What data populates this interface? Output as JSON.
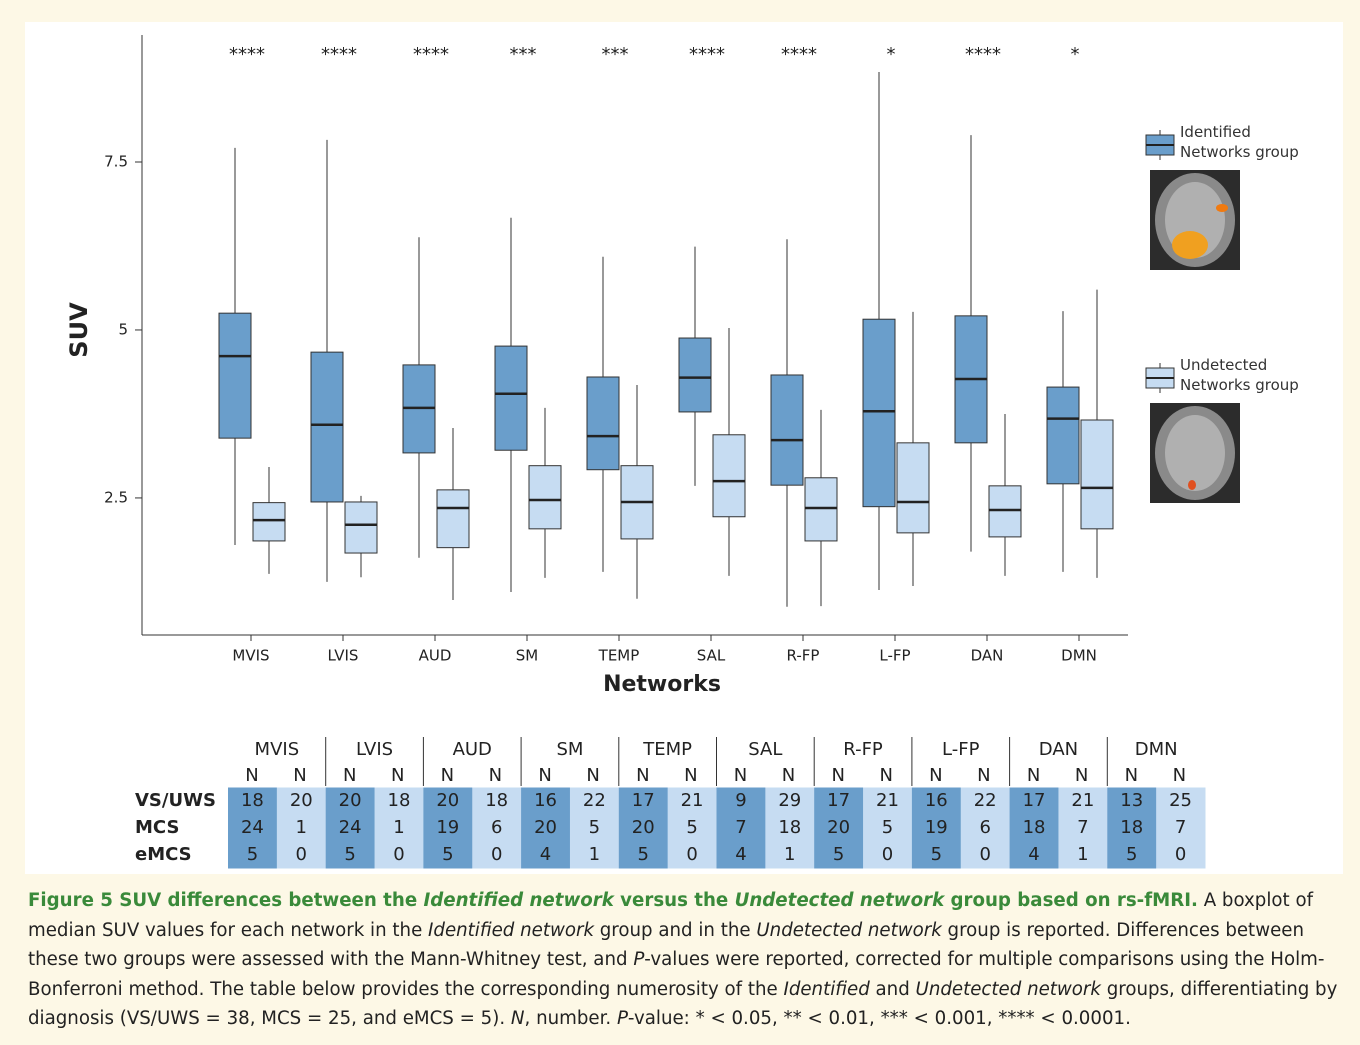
{
  "chart_data": {
    "type": "boxplot",
    "x_label": "Networks",
    "y_label": "SUV",
    "categories": [
      "MVIS",
      "LVIS",
      "AUD",
      "SM",
      "TEMP",
      "SAL",
      "R-FP",
      "L-FP",
      "DAN",
      "DMN"
    ],
    "significance": [
      "****",
      "****",
      "****",
      "***",
      "***",
      "****",
      "****",
      "*",
      "****",
      "*"
    ],
    "ylim": [
      0.46,
      9.39
    ],
    "yticks": [
      2.5,
      5,
      7.5
    ],
    "series": [
      {
        "name": "Identified Networks group",
        "color": "#6a9ecb",
        "values": [
          {
            "whisker_low": 1.8,
            "q1": 3.39,
            "median": 4.61,
            "q3": 5.25,
            "whisker_high": 7.71
          },
          {
            "whisker_low": 1.25,
            "q1": 2.44,
            "median": 3.59,
            "q3": 4.67,
            "whisker_high": 7.83
          },
          {
            "whisker_low": 1.61,
            "q1": 3.17,
            "median": 3.84,
            "q3": 4.48,
            "whisker_high": 6.38
          },
          {
            "whisker_low": 1.1,
            "q1": 3.21,
            "median": 4.05,
            "q3": 4.76,
            "whisker_high": 6.67
          },
          {
            "whisker_low": 1.4,
            "q1": 2.92,
            "median": 3.42,
            "q3": 4.3,
            "whisker_high": 6.09
          },
          {
            "whisker_low": 2.68,
            "q1": 3.78,
            "median": 4.29,
            "q3": 4.88,
            "whisker_high": 6.24
          },
          {
            "whisker_low": 0.88,
            "q1": 2.69,
            "median": 3.36,
            "q3": 4.33,
            "whisker_high": 6.35
          },
          {
            "whisker_low": 1.13,
            "q1": 2.37,
            "median": 3.79,
            "q3": 5.16,
            "whisker_high": 8.84
          },
          {
            "whisker_low": 1.7,
            "q1": 3.32,
            "median": 4.27,
            "q3": 5.21,
            "whisker_high": 7.9
          },
          {
            "whisker_low": 1.4,
            "q1": 2.71,
            "median": 3.68,
            "q3": 4.15,
            "whisker_high": 5.28
          }
        ]
      },
      {
        "name": "Undetected Networks group",
        "color": "#c6dcf2",
        "values": [
          {
            "whisker_low": 1.37,
            "q1": 1.86,
            "median": 2.17,
            "q3": 2.43,
            "whisker_high": 2.96
          },
          {
            "whisker_low": 1.32,
            "q1": 1.68,
            "median": 2.1,
            "q3": 2.44,
            "whisker_high": 2.53
          },
          {
            "whisker_low": 0.98,
            "q1": 1.76,
            "median": 2.35,
            "q3": 2.62,
            "whisker_high": 3.54
          },
          {
            "whisker_low": 1.31,
            "q1": 2.04,
            "median": 2.47,
            "q3": 2.98,
            "whisker_high": 3.84
          },
          {
            "whisker_low": 1.0,
            "q1": 1.89,
            "median": 2.44,
            "q3": 2.98,
            "whisker_high": 4.18
          },
          {
            "whisker_low": 1.34,
            "q1": 2.22,
            "median": 2.75,
            "q3": 3.44,
            "whisker_high": 5.03
          },
          {
            "whisker_low": 0.89,
            "q1": 1.86,
            "median": 2.35,
            "q3": 2.8,
            "whisker_high": 3.81
          },
          {
            "whisker_low": 1.19,
            "q1": 1.98,
            "median": 2.44,
            "q3": 3.32,
            "whisker_high": 5.27
          },
          {
            "whisker_low": 1.34,
            "q1": 1.92,
            "median": 2.32,
            "q3": 2.68,
            "whisker_high": 3.75
          },
          {
            "whisker_low": 1.31,
            "q1": 2.04,
            "median": 2.65,
            "q3": 3.66,
            "whisker_high": 5.6
          }
        ]
      }
    ]
  },
  "table": {
    "groups": [
      "MVIS",
      "LVIS",
      "AUD",
      "SM",
      "TEMP",
      "SAL",
      "R-FP",
      "L-FP",
      "DAN",
      "DMN"
    ],
    "column_label": "N",
    "rows": [
      {
        "label": "VS/UWS",
        "values": [
          18,
          20,
          20,
          18,
          20,
          18,
          16,
          22,
          17,
          21,
          9,
          29,
          17,
          21,
          16,
          22,
          17,
          21,
          13,
          25
        ]
      },
      {
        "label": "MCS",
        "values": [
          24,
          1,
          24,
          1,
          19,
          6,
          20,
          5,
          20,
          5,
          7,
          18,
          20,
          5,
          19,
          6,
          18,
          7,
          18,
          7
        ]
      },
      {
        "label": "eMCS",
        "values": [
          5,
          0,
          5,
          0,
          5,
          0,
          4,
          1,
          5,
          0,
          4,
          1,
          5,
          0,
          5,
          0,
          4,
          1,
          5,
          0
        ]
      }
    ]
  },
  "caption": {
    "title": [
      "Figure 5 SUV differences between the ",
      "Identified network",
      " versus the ",
      "Undetected network",
      " group based on rs-fMRI."
    ],
    "body": [
      " A boxplot of median SUV values for each network in the ",
      "Identified network",
      " group and in the ",
      "Undetected network",
      " group is reported. Differences between these two groups were assessed with the Mann-Whitney test, and ",
      "P",
      "-values were reported, corrected for multiple comparisons using the Holm-Bonferroni method. The table below provides the corresponding numerosity of the ",
      "Identified",
      " and ",
      "Undetected network",
      " groups, differentiating by diagnosis (VS/UWS = 38, MCS = 25, and eMCS = 5). ",
      "N",
      ", number. ",
      "P",
      "-value: * < 0.05, ** < 0.01, *** < 0.001, **** < 0.0001."
    ]
  }
}
